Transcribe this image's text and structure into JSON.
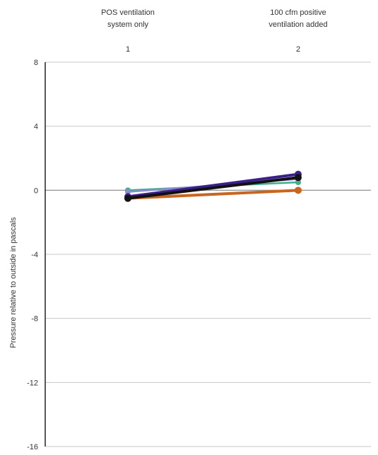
{
  "chart_data": {
    "type": "line",
    "title": "",
    "xlabel": "",
    "ylabel": "Pressure relative to outside in pascals",
    "categories": [
      "1",
      "2"
    ],
    "category_labels": [
      [
        "POS ventilation",
        "system only"
      ],
      [
        "100 cfm positive",
        "ventilation added"
      ]
    ],
    "ylim": [
      -16,
      8
    ],
    "yticks": [
      8,
      4,
      0,
      -4,
      -8,
      -12,
      -16
    ],
    "grid": true,
    "legend": "none",
    "series": [
      {
        "values": [
          0.0,
          0.5
        ],
        "color": "#3fae8c"
      },
      {
        "values": [
          -0.1,
          0.7
        ],
        "color": "#8c8cd0"
      },
      {
        "values": [
          -0.4,
          1.0
        ],
        "color": "#3b1f8c"
      },
      {
        "values": [
          -0.5,
          0.0
        ],
        "color": "#c8651e"
      },
      {
        "values": [
          -0.5,
          0.8
        ],
        "color": "#111111"
      }
    ]
  }
}
